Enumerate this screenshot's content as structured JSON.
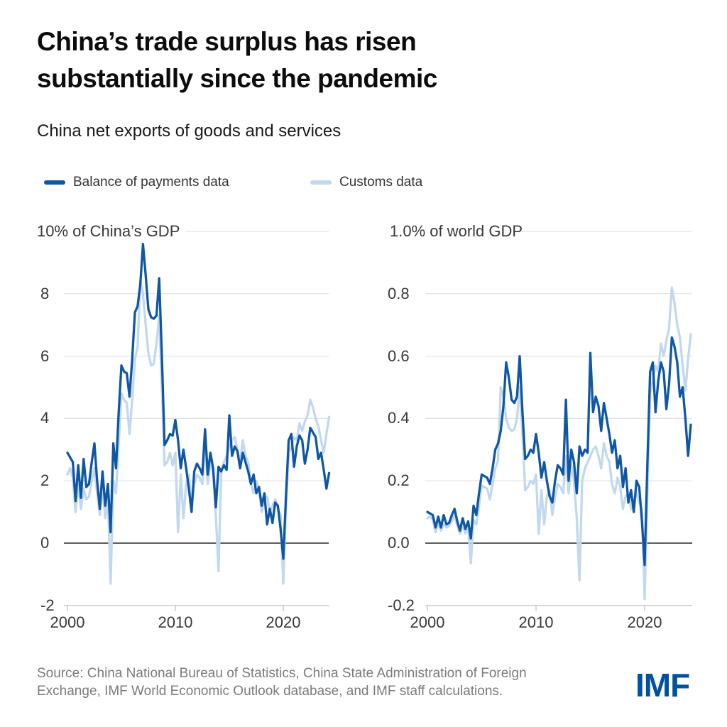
{
  "page": {
    "title": "China’s trade surplus has risen substantially since the pandemic",
    "subtitle": "China net exports of goods and services",
    "source": "Source: China National Bureau of Statistics, China State Administration of Foreign Exchange, IMF World Economic Outlook database, and IMF staff calculations.",
    "logo": "IMF"
  },
  "colors": {
    "bop_line": "#0f57a5",
    "customs_line": "#c2d8ee",
    "zero_line": "#262626",
    "gridline": "#dcdcdc",
    "axis_line": "#c8c8c8",
    "logo_blue": "#00519e"
  },
  "legend": [
    {
      "label": "Balance of payments data",
      "color": "#0f57a5"
    },
    {
      "label": "Customs data",
      "color": "#c2d8ee"
    }
  ],
  "chart_data": [
    {
      "type": "line",
      "axis_header": "10% of China’s GDP",
      "ylabel": "% of China's GDP",
      "x_start": 2000,
      "x_step": 0.25,
      "ylim": [
        -2,
        10
      ],
      "y_gridlines": [
        10,
        8,
        6,
        4,
        2
      ],
      "zero_line": 0,
      "grid": true,
      "legend_position": "top",
      "y_tick_labels": [
        "8",
        "6",
        "4",
        "2",
        "0",
        "-2"
      ],
      "x_ticks": [
        2000,
        2010,
        2020
      ],
      "x_tick_labels": [
        "2000",
        "2010",
        "2020"
      ],
      "series": [
        {
          "name": "Balance of payments data",
          "color": "#0f57a5",
          "values": [
            2.9,
            2.75,
            2.6,
            1.35,
            2.5,
            1.45,
            2.7,
            1.8,
            1.9,
            2.6,
            3.2,
            2.0,
            1.1,
            2.3,
            1.2,
            1.9,
            0.35,
            3.2,
            2.4,
            4.2,
            5.7,
            5.5,
            5.45,
            4.7,
            5.9,
            7.4,
            7.6,
            8.3,
            9.6,
            8.6,
            7.5,
            7.25,
            7.2,
            7.3,
            8.5,
            6.0,
            3.15,
            3.3,
            3.5,
            3.45,
            3.95,
            3.3,
            2.4,
            3.0,
            2.4,
            1.75,
            1.0,
            2.3,
            2.55,
            2.4,
            2.2,
            3.65,
            2.2,
            2.9,
            2.4,
            1.15,
            2.45,
            2.3,
            2.5,
            2.35,
            4.1,
            2.8,
            3.1,
            2.95,
            2.4,
            2.9,
            2.6,
            2.3,
            1.9,
            2.2,
            1.6,
            1.8,
            1.2,
            1.6,
            0.6,
            1.1,
            0.65,
            1.3,
            1.2,
            0.45,
            -0.5,
            1.5,
            3.3,
            3.5,
            2.45,
            3.1,
            3.45,
            3.3,
            2.55,
            3.0,
            3.7,
            3.55,
            3.4,
            2.7,
            2.9,
            2.35,
            1.75,
            2.25
          ]
        },
        {
          "name": "Customs data",
          "color": "#c2d8ee",
          "values": [
            2.2,
            2.4,
            2.1,
            1.0,
            1.9,
            1.1,
            1.75,
            1.4,
            1.5,
            2.0,
            2.4,
            1.6,
            0.9,
            1.8,
            0.8,
            1.5,
            -1.3,
            2.0,
            1.6,
            3.2,
            4.8,
            4.6,
            4.5,
            3.5,
            4.6,
            5.9,
            6.3,
            8.4,
            8.0,
            7.0,
            6.1,
            5.7,
            5.75,
            6.4,
            7.3,
            5.0,
            2.5,
            2.6,
            2.9,
            2.5,
            2.9,
            0.35,
            2.2,
            0.8,
            1.9,
            2.2,
            1.2,
            1.9,
            2.2,
            2.1,
            1.9,
            3.2,
            1.9,
            2.6,
            2.3,
            0.9,
            -0.9,
            2.3,
            2.6,
            2.8,
            3.1,
            3.3,
            3.4,
            3.0,
            2.6,
            3.3,
            2.8,
            2.6,
            1.9,
            1.6,
            2.0,
            1.7,
            1.0,
            1.4,
            1.5,
            1.0,
            1.2,
            1.4,
            1.1,
            0.9,
            -1.3,
            1.2,
            2.9,
            3.1,
            3.4,
            3.3,
            3.85,
            3.6,
            3.9,
            4.1,
            4.6,
            4.35,
            4.0,
            3.75,
            3.3,
            2.9,
            3.5,
            4.05
          ]
        }
      ]
    },
    {
      "type": "line",
      "axis_header": "1.0% of world GDP",
      "ylabel": "% of world GDP",
      "x_start": 2000,
      "x_step": 0.25,
      "ylim": [
        -0.2,
        1.0
      ],
      "y_gridlines": [
        1.0,
        0.8,
        0.6,
        0.4,
        0.2
      ],
      "zero_line": 0,
      "grid": true,
      "legend_position": "top",
      "y_tick_labels": [
        "0.8",
        "0.6",
        "0.4",
        "0.2",
        "0.0",
        "-0.2"
      ],
      "x_ticks": [
        2000,
        2010,
        2020
      ],
      "x_tick_labels": [
        "2000",
        "2010",
        "2020"
      ],
      "series": [
        {
          "name": "Balance of payments data",
          "color": "#0f57a5",
          "values": [
            0.1,
            0.095,
            0.09,
            0.05,
            0.085,
            0.05,
            0.09,
            0.06,
            0.065,
            0.09,
            0.11,
            0.07,
            0.04,
            0.08,
            0.045,
            0.07,
            0.015,
            0.12,
            0.09,
            0.16,
            0.22,
            0.215,
            0.21,
            0.19,
            0.24,
            0.3,
            0.32,
            0.36,
            0.44,
            0.58,
            0.53,
            0.46,
            0.45,
            0.47,
            0.6,
            0.42,
            0.27,
            0.28,
            0.3,
            0.29,
            0.35,
            0.29,
            0.21,
            0.26,
            0.2,
            0.15,
            0.13,
            0.2,
            0.25,
            0.24,
            0.22,
            0.46,
            0.2,
            0.3,
            0.26,
            0.16,
            0.31,
            0.28,
            0.3,
            0.29,
            0.61,
            0.42,
            0.47,
            0.44,
            0.36,
            0.45,
            0.4,
            0.35,
            0.29,
            0.33,
            0.24,
            0.28,
            0.18,
            0.24,
            0.13,
            0.17,
            0.1,
            0.2,
            0.18,
            0.07,
            -0.07,
            0.25,
            0.55,
            0.58,
            0.42,
            0.52,
            0.58,
            0.55,
            0.43,
            0.51,
            0.66,
            0.63,
            0.58,
            0.47,
            0.5,
            0.4,
            0.28,
            0.38
          ]
        },
        {
          "name": "Customs data",
          "color": "#c2d8ee",
          "values": [
            0.08,
            0.085,
            0.075,
            0.035,
            0.065,
            0.04,
            0.06,
            0.05,
            0.055,
            0.07,
            0.09,
            0.055,
            0.03,
            0.06,
            0.03,
            0.055,
            -0.065,
            0.075,
            0.06,
            0.12,
            0.185,
            0.18,
            0.175,
            0.14,
            0.19,
            0.24,
            0.265,
            0.5,
            0.47,
            0.4,
            0.37,
            0.36,
            0.365,
            0.4,
            0.5,
            0.35,
            0.17,
            0.18,
            0.2,
            0.19,
            0.22,
            0.03,
            0.17,
            0.06,
            0.15,
            0.17,
            0.09,
            0.15,
            0.19,
            0.18,
            0.16,
            0.28,
            0.16,
            0.25,
            0.2,
            0.08,
            -0.12,
            0.2,
            0.24,
            0.26,
            0.28,
            0.3,
            0.31,
            0.28,
            0.24,
            0.32,
            0.28,
            0.26,
            0.19,
            0.16,
            0.21,
            0.18,
            0.11,
            0.15,
            0.16,
            0.11,
            0.13,
            0.16,
            0.13,
            0.11,
            -0.18,
            0.15,
            0.48,
            0.52,
            0.57,
            0.55,
            0.64,
            0.6,
            0.65,
            0.69,
            0.82,
            0.77,
            0.7,
            0.66,
            0.57,
            0.49,
            0.59,
            0.67
          ]
        }
      ]
    }
  ]
}
